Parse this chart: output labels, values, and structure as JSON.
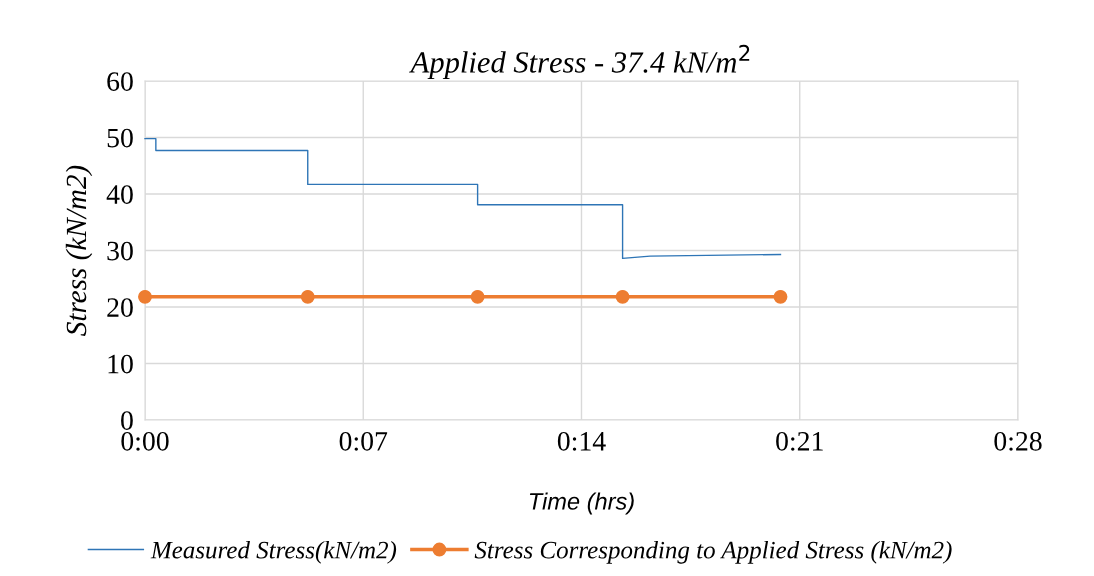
{
  "chart_data": {
    "type": "line",
    "title": "Applied Stress - 37.4 kN/m$^{2}$",
    "xlabel": "Time (hrs)",
    "ylabel": "Stress (kN/m2)",
    "xlim": [
      0,
      0.46667
    ],
    "xticks": [
      {
        "value": 0,
        "label": "0:00"
      },
      {
        "value": 0.11667,
        "label": "0:07"
      },
      {
        "value": 0.23333,
        "label": "0:14"
      },
      {
        "value": 0.35,
        "label": "0:21"
      },
      {
        "value": 0.46667,
        "label": "0:28"
      }
    ],
    "ylim": [
      0,
      60
    ],
    "yticks": [
      0,
      10,
      20,
      30,
      40,
      50,
      60
    ],
    "grid": true,
    "legend": "bottom",
    "series": [
      {
        "name": "Measured Stress(kN/m2)",
        "color": "#2e75b6",
        "marker": "none",
        "x": [
          0,
          0.0058,
          0.0058,
          0.087,
          0.087,
          0.1778,
          0.1778,
          0.2553,
          0.2553,
          0.27,
          0.3397
        ],
        "values": [
          49.8,
          49.8,
          47.7,
          47.7,
          41.7,
          41.7,
          38.1,
          38.1,
          28.6,
          29.0,
          29.3
        ]
      },
      {
        "name": "Stress Corresponding to Applied Stress (kN/m2)",
        "color": "#ed7d31",
        "marker": "circle",
        "x": [
          0,
          0.087,
          0.1778,
          0.2553,
          0.3397
        ],
        "values": [
          21.8,
          21.8,
          21.8,
          21.8,
          21.8
        ]
      }
    ]
  }
}
